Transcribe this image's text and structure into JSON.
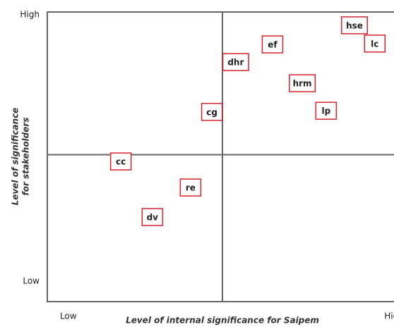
{
  "chart_data": {
    "type": "scatter",
    "xlabel": "Level of internal significance for Saipem",
    "ylabel": [
      "Level of significance",
      "for stakeholders"
    ],
    "xlim": [
      0,
      10
    ],
    "ylim": [
      0,
      10
    ],
    "xticks": [
      {
        "value": 0.6,
        "label": "Low"
      },
      {
        "value": 9.9,
        "label": "High"
      }
    ],
    "yticks": [
      {
        "value": 0.7,
        "label": "Low"
      },
      {
        "value": 9.9,
        "label": "High"
      }
    ],
    "color": "#d9232d",
    "series": [
      {
        "labels": [
          "hse",
          "lc",
          "ef",
          "dhr",
          "hrm",
          "lp",
          "cg",
          "cc",
          "re",
          "dv"
        ],
        "x": [
          8.77,
          9.35,
          6.43,
          5.38,
          7.28,
          7.96,
          4.7,
          2.1,
          4.09,
          3.0
        ],
        "values": [
          9.54,
          8.91,
          8.88,
          8.27,
          7.54,
          6.59,
          6.55,
          4.84,
          3.94,
          2.92
        ]
      }
    ]
  }
}
